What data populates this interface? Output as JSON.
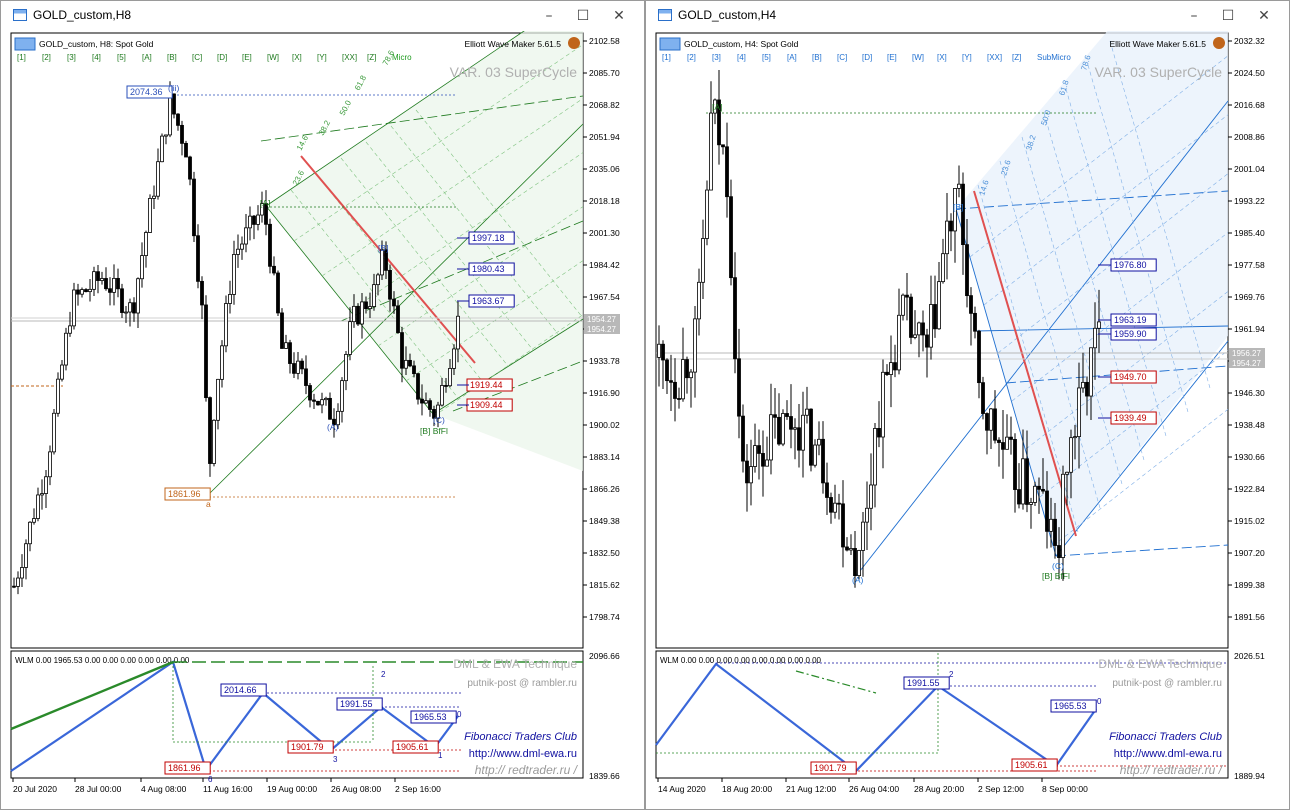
{
  "left": {
    "title": "GOLD_custom,H8",
    "symbol_text": "GOLD_custom, H8:  Spot Gold",
    "ea_name": "Elliott Wave Maker 5.61.5",
    "var_text": "VAR. 03 SuperCycle",
    "waves": [
      "[1]",
      "[2]",
      "[3]",
      "[4]",
      "[5]",
      "[A]",
      "[B]",
      "[C]",
      "[D]",
      "[E]",
      "[W]",
      "[X]",
      "[Y]",
      "[XX]",
      "[Z]",
      "Micro"
    ],
    "price_ticks": [
      "2102.58",
      "2085.70",
      "2068.82",
      "2051.94",
      "2035.06",
      "2018.18",
      "2001.30",
      "1984.42",
      "1967.54",
      "1950.66",
      "1933.78",
      "1916.90",
      "1900.02",
      "1883.14",
      "1866.26",
      "1849.38",
      "1832.50",
      "1815.62",
      "1798.74"
    ],
    "price_boxes": [
      {
        "text": "1954.27",
        "color": "#b8b8b8"
      },
      {
        "text": "1954.27",
        "color": "#b8b8b8"
      }
    ],
    "fib_labels": [
      "23.6",
      "38.2",
      "50.0",
      "61.8",
      "78.6",
      "14.6"
    ],
    "labels": [
      {
        "text": "2074.36",
        "color": "#2a4fb8"
      },
      {
        "text": "1997.18",
        "color": "#1010a0"
      },
      {
        "text": "1980.43",
        "color": "#1010a0"
      },
      {
        "text": "1963.67",
        "color": "#1010a0"
      },
      {
        "text": "1919.44",
        "color": "#c00000"
      },
      {
        "text": "1909.44",
        "color": "#c00000"
      },
      {
        "text": "1861.96",
        "color": "#c0651b"
      }
    ],
    "wave_labels": [
      "(iii)",
      "[A]",
      "[B]",
      "(A)",
      "(C)",
      "[B] BfFl",
      "a"
    ],
    "osc_header": "WLM 0.00  1965.53  0.00  0.00  0.00  0.00  0.00  0.00",
    "osc_ticks": [
      "2096.66",
      "1839.66"
    ],
    "osc_labels": [
      {
        "text": "2014.66",
        "color": "#1010a0"
      },
      {
        "text": "1991.55",
        "color": "#1010a0"
      },
      {
        "text": "1965.53",
        "color": "#1010a0"
      },
      {
        "text": "1901.79",
        "color": "#c00000"
      },
      {
        "text": "1905.61",
        "color": "#c00000"
      },
      {
        "text": "1861.96",
        "color": "#c00000"
      }
    ],
    "osc_wave_numbers": [
      "6",
      "2",
      "3",
      "0",
      "1"
    ],
    "credits": [
      "DML & EWA Technique",
      "putnik-post @ rambler.ru",
      "Fibonacci   Traders   Club",
      "http://www.dml-ewa.ru",
      "http:// redtrader.ru /"
    ],
    "time_ticks": [
      "20 Jul 2020",
      "28 Jul 00:00",
      "4 Aug 08:00",
      "11 Aug 16:00",
      "19 Aug 00:00",
      "26 Aug 08:00",
      "2 Sep 16:00"
    ]
  },
  "right": {
    "title": "GOLD_custom,H4",
    "symbol_text": "GOLD_custom, H4:  Spot Gold",
    "ea_name": "Elliott Wave Maker 5.61.5",
    "var_text": "VAR. 03 SuperCycle",
    "waves": [
      "[1]",
      "[2]",
      "[3]",
      "[4]",
      "[5]",
      "[A]",
      "[B]",
      "[C]",
      "[D]",
      "[E]",
      "[W]",
      "[X]",
      "[Y]",
      "[XX]",
      "[Z]",
      "SubMicro"
    ],
    "price_ticks": [
      "2032.32",
      "2024.50",
      "2016.68",
      "2008.86",
      "2001.04",
      "1993.22",
      "1985.40",
      "1977.58",
      "1969.76",
      "1961.94",
      "1954.12",
      "1946.30",
      "1938.48",
      "1930.66",
      "1922.84",
      "1915.02",
      "1907.20",
      "1899.38",
      "1891.56"
    ],
    "price_boxes": [
      {
        "text": "1956.27",
        "color": "#b8b8b8"
      },
      {
        "text": "1954.27",
        "color": "#b8b8b8"
      }
    ],
    "fib_labels": [
      "78.6",
      "61.8",
      "50.0",
      "38.2",
      "23.6",
      "14.6"
    ],
    "labels": [
      {
        "text": "1976.80",
        "color": "#1010a0"
      },
      {
        "text": "1963.19",
        "color": "#1010a0"
      },
      {
        "text": "1959.90",
        "color": "#1010a0"
      },
      {
        "text": "1949.70",
        "color": "#c00000"
      },
      {
        "text": "1939.49",
        "color": "#c00000"
      }
    ],
    "wave_labels": [
      "[A]",
      "[B]",
      "(A)",
      "(C)",
      "[B] BfFl"
    ],
    "osc_header": "WLM 0.00  0.00  0.00  0.00  0.00  0.00  0.00  0.00",
    "osc_ticks": [
      "2026.51",
      "1889.94"
    ],
    "osc_labels": [
      {
        "text": "1991.55",
        "color": "#1010a0"
      },
      {
        "text": "1965.53",
        "color": "#1010a0"
      },
      {
        "text": "1901.79",
        "color": "#c00000"
      },
      {
        "text": "1905.61",
        "color": "#c00000"
      }
    ],
    "osc_wave_numbers": [
      "2",
      "0"
    ],
    "credits": [
      "DML & EWA Technique",
      "putnik-post @ rambler.ru",
      "Fibonacci   Traders   Club",
      "http://www.dml-ewa.ru",
      "http:// redtrader.ru /"
    ],
    "time_ticks": [
      "14 Aug 2020",
      "18 Aug 20:00",
      "21 Aug 12:00",
      "26 Aug 04:00",
      "28 Aug 20:00",
      "2 Sep 12:00",
      "8 Sep 00:00"
    ]
  }
}
